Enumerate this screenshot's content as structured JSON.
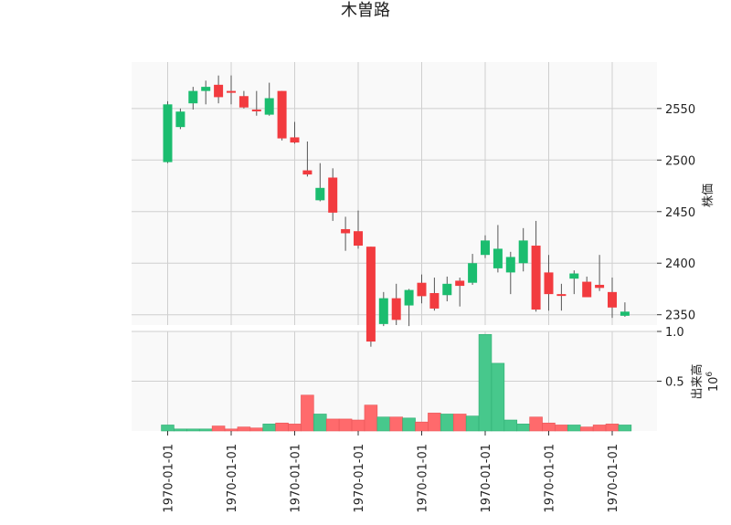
{
  "chart_data": {
    "type": "candlestick",
    "title": "木曽路",
    "up_color": "#1bbd6f",
    "down_color": "#f23b3f",
    "volume_up_color": "#47c88c",
    "volume_down_color": "#ff6a6c",
    "grid": true,
    "price_axis": {
      "label": "株価",
      "ylim": [
        2340,
        2595
      ],
      "ticks": [
        "2350",
        "2400",
        "2450",
        "2500",
        "2550"
      ],
      "tick_values": [
        2350,
        2400,
        2450,
        2500,
        2550
      ],
      "side": "right"
    },
    "volume_axis": {
      "label": "出来高",
      "exponent_label": "10",
      "exponent_power": "6",
      "ylim": [
        0,
        1.0
      ],
      "ticks": [
        "0.5",
        "1.0"
      ],
      "tick_values": [
        0.5,
        1.0
      ],
      "side": "right"
    },
    "x_tick_labels": [
      "1970-01-01",
      "1970-01-01",
      "1970-01-01",
      "1970-01-01",
      "1970-01-01",
      "1970-01-01",
      "1970-01-01",
      "1970-01-01"
    ],
    "x_tick_index": [
      0,
      5,
      10,
      15,
      20,
      25,
      30,
      35
    ],
    "candles": [
      {
        "open": 2498,
        "high": 2557,
        "low": 2497,
        "close": 2554,
        "volume": 0.06
      },
      {
        "open": 2532,
        "high": 2550,
        "low": 2530,
        "close": 2547,
        "volume": 0.02
      },
      {
        "open": 2555,
        "high": 2571,
        "low": 2549,
        "close": 2567,
        "volume": 0.02
      },
      {
        "open": 2567,
        "high": 2577,
        "low": 2554,
        "close": 2571,
        "volume": 0.02
      },
      {
        "open": 2573,
        "high": 2582,
        "low": 2555,
        "close": 2561,
        "volume": 0.05
      },
      {
        "open": 2567,
        "high": 2582,
        "low": 2554,
        "close": 2566,
        "volume": 0.02
      },
      {
        "open": 2562,
        "high": 2567,
        "low": 2550,
        "close": 2551,
        "volume": 0.04
      },
      {
        "open": 2549,
        "high": 2567,
        "low": 2543,
        "close": 2548,
        "volume": 0.03
      },
      {
        "open": 2544,
        "high": 2575,
        "low": 2543,
        "close": 2560,
        "volume": 0.07
      },
      {
        "open": 2567,
        "high": 2567,
        "low": 2519,
        "close": 2521,
        "volume": 0.08
      },
      {
        "open": 2522,
        "high": 2537,
        "low": 2516,
        "close": 2517,
        "volume": 0.07
      },
      {
        "open": 2490,
        "high": 2518,
        "low": 2484,
        "close": 2486,
        "volume": 0.36
      },
      {
        "open": 2461,
        "high": 2497,
        "low": 2460,
        "close": 2473,
        "volume": 0.17
      },
      {
        "open": 2483,
        "high": 2492,
        "low": 2441,
        "close": 2449,
        "volume": 0.12
      },
      {
        "open": 2433,
        "high": 2445,
        "low": 2412,
        "close": 2429,
        "volume": 0.12
      },
      {
        "open": 2431,
        "high": 2451,
        "low": 2414,
        "close": 2417,
        "volume": 0.11
      },
      {
        "open": 2416,
        "high": 2416,
        "low": 2319,
        "close": 2324,
        "volume": 0.26
      },
      {
        "open": 2341,
        "high": 2372,
        "low": 2339,
        "close": 2366,
        "volume": 0.14
      },
      {
        "open": 2366,
        "high": 2380,
        "low": 2340,
        "close": 2345,
        "volume": 0.14
      },
      {
        "open": 2359,
        "high": 2375,
        "low": 2339,
        "close": 2374,
        "volume": 0.13
      },
      {
        "open": 2381,
        "high": 2389,
        "low": 2361,
        "close": 2368,
        "volume": 0.09
      },
      {
        "open": 2371,
        "high": 2386,
        "low": 2354,
        "close": 2356,
        "volume": 0.18
      },
      {
        "open": 2369,
        "high": 2387,
        "low": 2363,
        "close": 2380,
        "volume": 0.17
      },
      {
        "open": 2383,
        "high": 2386,
        "low": 2358,
        "close": 2378,
        "volume": 0.17
      },
      {
        "open": 2381,
        "high": 2409,
        "low": 2379,
        "close": 2400,
        "volume": 0.15
      },
      {
        "open": 2408,
        "high": 2427,
        "low": 2405,
        "close": 2422,
        "volume": 0.97
      },
      {
        "open": 2395,
        "high": 2437,
        "low": 2391,
        "close": 2414,
        "volume": 0.68
      },
      {
        "open": 2391,
        "high": 2411,
        "low": 2370,
        "close": 2406,
        "volume": 0.11
      },
      {
        "open": 2400,
        "high": 2434,
        "low": 2392,
        "close": 2422,
        "volume": 0.07
      },
      {
        "open": 2417,
        "high": 2441,
        "low": 2353,
        "close": 2355,
        "volume": 0.14
      },
      {
        "open": 2391,
        "high": 2408,
        "low": 2354,
        "close": 2370,
        "volume": 0.08
      },
      {
        "open": 2370,
        "high": 2380,
        "low": 2354,
        "close": 2369,
        "volume": 0.06
      },
      {
        "open": 2385,
        "high": 2393,
        "low": 2370,
        "close": 2390,
        "volume": 0.06
      },
      {
        "open": 2382,
        "high": 2387,
        "low": 2367,
        "close": 2367,
        "volume": 0.04
      },
      {
        "open": 2379,
        "high": 2408,
        "low": 2373,
        "close": 2376,
        "volume": 0.06
      },
      {
        "open": 2372,
        "high": 2386,
        "low": 2347,
        "close": 2357,
        "volume": 0.07
      },
      {
        "open": 2349,
        "high": 2362,
        "low": 2348,
        "close": 2353,
        "volume": 0.06
      }
    ]
  }
}
